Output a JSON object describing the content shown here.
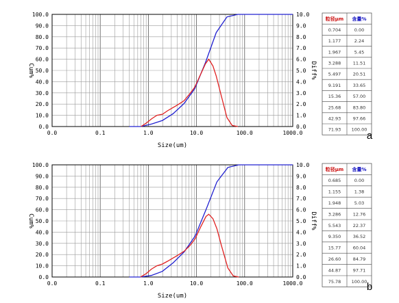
{
  "chart_data": [
    {
      "type": "line",
      "panel_label": "a",
      "xlabel": "Size(um)",
      "ylabel_left": "Cum%",
      "ylabel_right": "Diff%",
      "x_scale": "log",
      "xlim": [
        0.01,
        1000
      ],
      "ylim_left": [
        0,
        100
      ],
      "ylim_right": [
        0,
        10
      ],
      "x_ticks": [
        "0.0",
        "0.1",
        "1.0",
        "10.0",
        "100.0",
        "1000.0"
      ],
      "y_ticks_left": [
        "0.0",
        "10.0",
        "20.0",
        "30.0",
        "40.0",
        "50.0",
        "60.0",
        "70.0",
        "80.0",
        "90.0",
        "100.0"
      ],
      "y_ticks_right": [
        "0.0",
        "1.0",
        "2.0",
        "3.0",
        "4.0",
        "5.0",
        "6.0",
        "7.0",
        "8.0",
        "9.0",
        "10.0"
      ],
      "series": [
        {
          "color": "#2020d0",
          "axis": "left",
          "x": [
            0.4,
            0.704,
            1.177,
            1.967,
            3.288,
            5.497,
            9.191,
            15.36,
            25.68,
            42.93,
            71.93,
            1000
          ],
          "y": [
            0,
            0.0,
            2.24,
            5.45,
            11.51,
            20.51,
            33.65,
            57.0,
            83.8,
            97.66,
            100.0,
            100.0
          ]
        },
        {
          "color": "#e02020",
          "axis": "right",
          "x": [
            0.704,
            0.9,
            1.177,
            1.5,
            1.967,
            2.5,
            3.288,
            4.3,
            5.497,
            7.2,
            9.191,
            12,
            15.36,
            18,
            22,
            25.68,
            32,
            42.93,
            55,
            71.93
          ],
          "y": [
            0.0,
            0.3,
            0.7,
            1.0,
            1.1,
            1.4,
            1.7,
            2.0,
            2.3,
            2.9,
            3.5,
            4.6,
            5.6,
            6.0,
            5.4,
            4.5,
            2.9,
            0.8,
            0.1,
            0.0
          ]
        }
      ],
      "table": {
        "headers": [
          "粒径μm",
          "含量%"
        ],
        "rows": [
          [
            "0.704",
            "0.00"
          ],
          [
            "1.177",
            "2.24"
          ],
          [
            "1.967",
            "5.45"
          ],
          [
            "3.288",
            "11.51"
          ],
          [
            "5.497",
            "20.51"
          ],
          [
            "9.191",
            "33.65"
          ],
          [
            "15.36",
            "57.00"
          ],
          [
            "25.68",
            "83.80"
          ],
          [
            "42.93",
            "97.66"
          ],
          [
            "71.93",
            "100.00"
          ]
        ]
      }
    },
    {
      "type": "line",
      "panel_label": "b",
      "xlabel": "Size(um)",
      "ylabel_left": "Cum%",
      "ylabel_right": "Diff%",
      "x_scale": "log",
      "xlim": [
        0.01,
        1000
      ],
      "ylim_left": [
        0,
        100
      ],
      "ylim_right": [
        0,
        10
      ],
      "x_ticks": [
        "0.0",
        "0.1",
        "1.0",
        "10.0",
        "100.0",
        "1000.0"
      ],
      "y_ticks_left": [
        "0.0",
        "10.0",
        "20.0",
        "30.0",
        "40.0",
        "50.0",
        "60.0",
        "70.0",
        "80.0",
        "90.0",
        "100.0"
      ],
      "y_ticks_right": [
        "0.0",
        "1.0",
        "2.0",
        "3.0",
        "4.0",
        "5.0",
        "6.0",
        "7.0",
        "8.0",
        "9.0",
        "10.0"
      ],
      "series": [
        {
          "color": "#2020d0",
          "axis": "left",
          "x": [
            0.4,
            0.685,
            1.155,
            1.948,
            3.286,
            5.543,
            9.35,
            15.77,
            26.6,
            44.87,
            75.78,
            1000
          ],
          "y": [
            0,
            0.0,
            1.38,
            5.03,
            12.76,
            22.37,
            36.52,
            60.04,
            84.79,
            97.71,
            100.0,
            100.0
          ]
        },
        {
          "color": "#e02020",
          "axis": "right",
          "x": [
            0.685,
            0.9,
            1.155,
            1.5,
            1.948,
            2.5,
            3.286,
            4.3,
            5.543,
            7.3,
            9.35,
            12,
            15.77,
            18,
            22,
            26.6,
            33,
            44.87,
            58,
            75.78
          ],
          "y": [
            0.0,
            0.3,
            0.7,
            1.0,
            1.15,
            1.4,
            1.7,
            2.0,
            2.3,
            2.8,
            3.4,
            4.4,
            5.4,
            5.6,
            5.2,
            4.3,
            2.8,
            0.8,
            0.1,
            0.0
          ]
        }
      ],
      "table": {
        "headers": [
          "粒径μm",
          "含量%"
        ],
        "rows": [
          [
            "0.685",
            "0.00"
          ],
          [
            "1.155",
            "1.38"
          ],
          [
            "1.948",
            "5.03"
          ],
          [
            "3.286",
            "12.76"
          ],
          [
            "5.543",
            "22.37"
          ],
          [
            "9.350",
            "36.52"
          ],
          [
            "15.77",
            "60.04"
          ],
          [
            "26.60",
            "84.79"
          ],
          [
            "44.87",
            "97.71"
          ],
          [
            "75.78",
            "100.00"
          ]
        ]
      }
    }
  ]
}
